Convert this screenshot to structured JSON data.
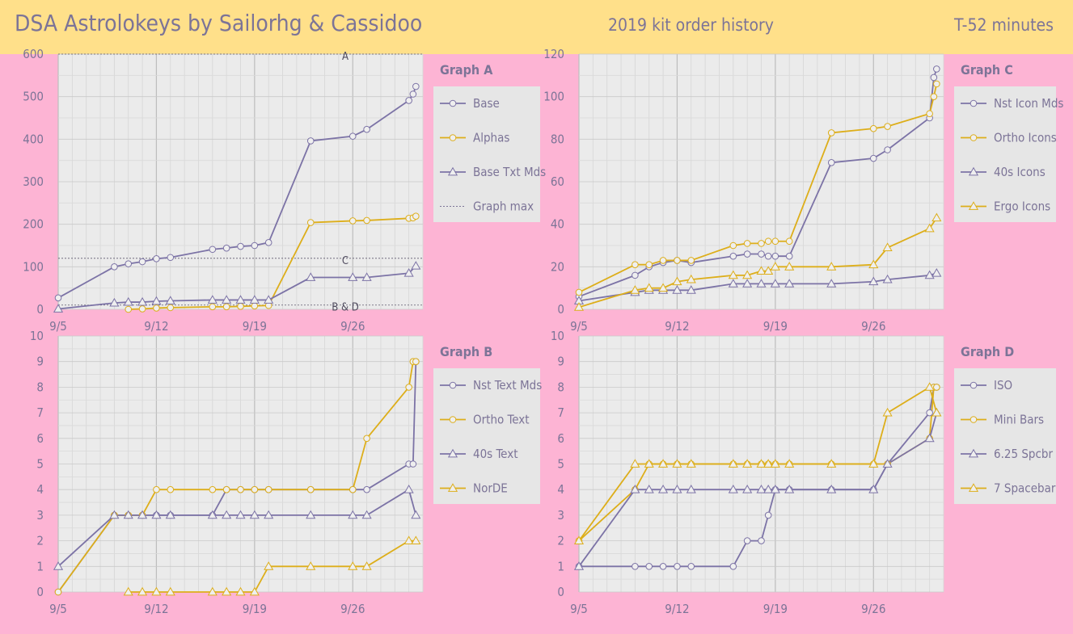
{
  "header": {
    "title": "DSA Astrolokeys by Sailorhg & Cassidoo",
    "subtitle": "2019 kit order history",
    "countdown": "T-52 minutes"
  },
  "colors": {
    "background": "#FDB4D4",
    "header_bg": "#FFE08A",
    "plot_bg": "#EBEBEB",
    "legend_bg": "#E6E6E6",
    "purple": "#7C73A6",
    "gold": "#DDAE1A",
    "text": "#7C7497"
  },
  "chart_data": [
    {
      "id": "A",
      "type": "line",
      "title": "Graph A",
      "ylim": [
        0,
        600
      ],
      "yticks": [
        0,
        100,
        200,
        300,
        400,
        500,
        600
      ],
      "xlim": [
        5,
        31
      ],
      "xticks": [
        5,
        12,
        19,
        26
      ],
      "xtick_labels": [
        "9/5",
        "9/12",
        "9/19",
        "9/26"
      ],
      "grid": true,
      "legend": "right",
      "series": [
        {
          "name": "Base",
          "color": "#7C73A6",
          "marker": "circle",
          "x": [
            5,
            9,
            10,
            11,
            12,
            13,
            16,
            17,
            18,
            19,
            20,
            23,
            26,
            27,
            30,
            30.3,
            30.5
          ],
          "y": [
            27,
            100,
            107,
            112,
            119,
            122,
            141,
            144,
            148,
            150,
            157,
            396,
            407,
            423,
            491,
            506,
            524
          ]
        },
        {
          "name": "Alphas",
          "color": "#DDAE1A",
          "marker": "circle",
          "x": [
            10,
            11,
            12,
            13,
            16,
            17,
            18,
            19,
            20,
            23,
            26,
            27,
            30,
            30.3,
            30.5
          ],
          "y": [
            0,
            1,
            3,
            4,
            6,
            6,
            7,
            8,
            9,
            204,
            208,
            209,
            214,
            215,
            219
          ]
        },
        {
          "name": "Base Txt Mds",
          "color": "#7C73A6",
          "marker": "triangle",
          "x": [
            5,
            9,
            10,
            11,
            12,
            13,
            16,
            17,
            18,
            19,
            20,
            23,
            26,
            27,
            30,
            30.5
          ],
          "y": [
            1,
            15,
            17,
            17,
            19,
            20,
            22,
            22,
            22,
            22,
            22,
            75,
            75,
            75,
            85,
            102
          ]
        },
        {
          "name": "Graph max",
          "color": "#7C7497",
          "style": "dashed",
          "y": 600
        }
      ],
      "reference_lines": [
        {
          "label": "A",
          "y": 600
        },
        {
          "label": "C",
          "y": 120
        },
        {
          "label": "B & D",
          "y": 10
        }
      ]
    },
    {
      "id": "C",
      "type": "line",
      "title": "Graph C",
      "ylim": [
        0,
        120
      ],
      "yticks": [
        0,
        20,
        40,
        60,
        80,
        100,
        120
      ],
      "xlim": [
        5,
        31
      ],
      "xticks": [
        5,
        12,
        19,
        26
      ],
      "xtick_labels": [
        "9/5",
        "9/12",
        "9/19",
        "9/26"
      ],
      "grid": true,
      "legend": "right",
      "series": [
        {
          "name": "Nst Icon Mds",
          "color": "#7C73A6",
          "marker": "circle",
          "x": [
            5,
            9,
            10,
            11,
            12,
            13,
            16,
            17,
            18,
            18.5,
            19,
            20,
            23,
            26,
            27,
            30,
            30.3,
            30.5
          ],
          "y": [
            6,
            16,
            20,
            22,
            23,
            22,
            25,
            26,
            26,
            25,
            25,
            25,
            69,
            71,
            75,
            90,
            109,
            113
          ]
        },
        {
          "name": "Ortho Icons",
          "color": "#DDAE1A",
          "marker": "circle",
          "x": [
            5,
            9,
            10,
            11,
            12,
            13,
            16,
            17,
            18,
            18.5,
            19,
            20,
            23,
            26,
            27,
            30,
            30.3,
            30.5
          ],
          "y": [
            8,
            21,
            21,
            23,
            23,
            23,
            30,
            31,
            31,
            32,
            32,
            32,
            83,
            85,
            86,
            92,
            100,
            106
          ]
        },
        {
          "name": "40s Icons",
          "color": "#7C73A6",
          "marker": "triangle",
          "x": [
            5,
            9,
            10,
            11,
            12,
            13,
            16,
            17,
            18,
            19,
            20,
            23,
            26,
            27,
            30,
            30.5
          ],
          "y": [
            4,
            8,
            9,
            9,
            9,
            9,
            12,
            12,
            12,
            12,
            12,
            12,
            13,
            14,
            16,
            17
          ]
        },
        {
          "name": "Ergo Icons",
          "color": "#DDAE1A",
          "marker": "triangle",
          "x": [
            5,
            9,
            10,
            11,
            12,
            13,
            16,
            17,
            18,
            18.5,
            19,
            20,
            23,
            26,
            27,
            30,
            30.5
          ],
          "y": [
            1,
            9,
            10,
            10,
            13,
            14,
            16,
            16,
            18,
            18,
            20,
            20,
            20,
            21,
            29,
            38,
            43
          ]
        }
      ]
    },
    {
      "id": "B",
      "type": "line",
      "title": "Graph B",
      "ylim": [
        0,
        10
      ],
      "yticks": [
        0,
        1,
        2,
        3,
        4,
        5,
        6,
        7,
        8,
        9,
        10
      ],
      "xlim": [
        5,
        31
      ],
      "xticks": [
        5,
        12,
        19,
        26
      ],
      "xtick_labels": [
        "9/5",
        "9/12",
        "9/19",
        "9/26"
      ],
      "grid": true,
      "legend": "right",
      "series": [
        {
          "name": "Nst Text Mds",
          "color": "#7C73A6",
          "marker": "circle",
          "x": [
            5,
            9,
            10,
            11,
            12,
            13,
            16,
            17,
            18,
            19,
            20,
            23,
            26,
            27,
            30,
            30.3,
            30.5
          ],
          "y": [
            0,
            3,
            3,
            3,
            3,
            3,
            3,
            4,
            4,
            4,
            4,
            4,
            4,
            4,
            5,
            5,
            9
          ]
        },
        {
          "name": "Ortho Text",
          "color": "#DDAE1A",
          "marker": "circle",
          "x": [
            5,
            9,
            10,
            11,
            12,
            13,
            16,
            17,
            18,
            19,
            20,
            23,
            26,
            27,
            30,
            30.3,
            30.5
          ],
          "y": [
            0,
            3,
            3,
            3,
            4,
            4,
            4,
            4,
            4,
            4,
            4,
            4,
            4,
            6,
            8,
            9,
            9
          ]
        },
        {
          "name": "40s Text",
          "color": "#7C73A6",
          "marker": "triangle",
          "x": [
            5,
            9,
            10,
            11,
            12,
            13,
            16,
            17,
            18,
            19,
            20,
            23,
            26,
            27,
            30,
            30.5
          ],
          "y": [
            1,
            3,
            3,
            3,
            3,
            3,
            3,
            3,
            3,
            3,
            3,
            3,
            3,
            3,
            4,
            3
          ]
        },
        {
          "name": "NorDE",
          "color": "#DDAE1A",
          "marker": "triangle",
          "x": [
            10,
            11,
            12,
            13,
            16,
            17,
            18,
            19,
            20,
            23,
            26,
            27,
            30,
            30.5
          ],
          "y": [
            0,
            0,
            0,
            0,
            0,
            0,
            0,
            0,
            1,
            1,
            1,
            1,
            2,
            2
          ]
        }
      ]
    },
    {
      "id": "D",
      "type": "line",
      "title": "Graph D",
      "ylim": [
        0,
        10
      ],
      "yticks": [
        0,
        1,
        2,
        3,
        4,
        5,
        6,
        7,
        8,
        9,
        10
      ],
      "xlim": [
        5,
        31
      ],
      "xticks": [
        5,
        12,
        19,
        26
      ],
      "xtick_labels": [
        "9/5",
        "9/12",
        "9/19",
        "9/26"
      ],
      "grid": true,
      "legend": "right",
      "series": [
        {
          "name": "ISO",
          "color": "#7C73A6",
          "marker": "circle",
          "x": [
            5,
            9,
            10,
            11,
            12,
            13,
            16,
            17,
            18,
            18.5,
            19,
            20,
            23,
            26,
            27,
            30,
            30.3,
            30.5
          ],
          "y": [
            1,
            1,
            1,
            1,
            1,
            1,
            1,
            2,
            2,
            3,
            4,
            4,
            4,
            4,
            5,
            7,
            8,
            8
          ]
        },
        {
          "name": "Mini Bars",
          "color": "#DDAE1A",
          "marker": "circle",
          "x": [
            5,
            9,
            10,
            11,
            12,
            13,
            16,
            17,
            18,
            18.5,
            19,
            20,
            23,
            26,
            27,
            30,
            30.3,
            30.5
          ],
          "y": [
            2,
            4,
            5,
            5,
            5,
            5,
            5,
            5,
            5,
            5,
            5,
            5,
            5,
            5,
            5,
            6,
            8,
            8
          ]
        },
        {
          "name": "6.25 Spcbr",
          "color": "#7C73A6",
          "marker": "triangle",
          "x": [
            5,
            9,
            10,
            11,
            12,
            13,
            16,
            17,
            18,
            18.5,
            19,
            20,
            23,
            26,
            27,
            30,
            30.5
          ],
          "y": [
            1,
            4,
            4,
            4,
            4,
            4,
            4,
            4,
            4,
            4,
            4,
            4,
            4,
            4,
            5,
            6,
            7
          ]
        },
        {
          "name": "7 Spacebar",
          "color": "#DDAE1A",
          "marker": "triangle",
          "x": [
            5,
            9,
            10,
            11,
            12,
            13,
            16,
            17,
            18,
            18.5,
            19,
            20,
            23,
            26,
            27,
            30,
            30.5
          ],
          "y": [
            2,
            5,
            5,
            5,
            5,
            5,
            5,
            5,
            5,
            5,
            5,
            5,
            5,
            5,
            7,
            8,
            7
          ]
        }
      ]
    }
  ]
}
